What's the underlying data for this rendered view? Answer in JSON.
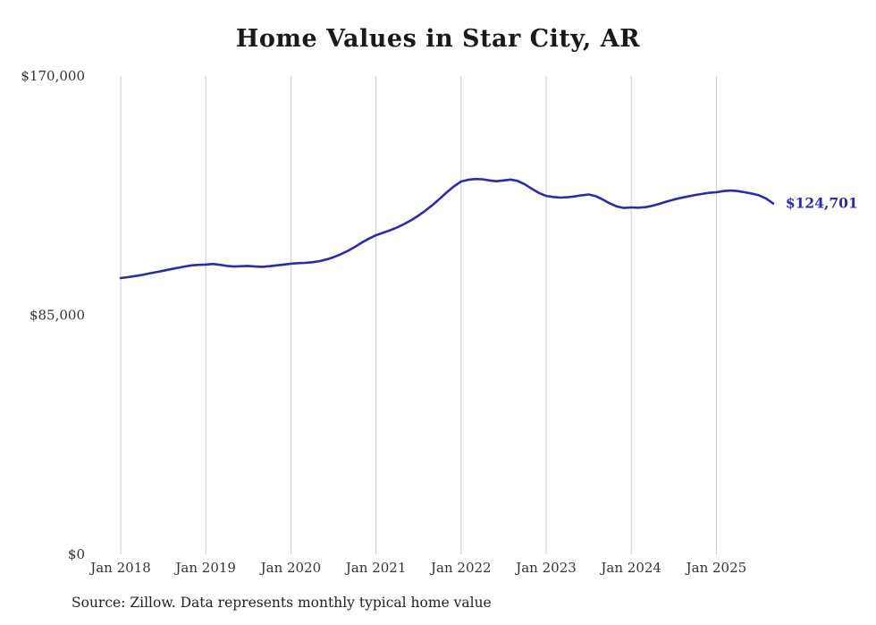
{
  "title": "Home Values in Star City, AR",
  "source": "Source: Zillow. Data represents monthly typical home value",
  "chart_data": {
    "type": "line",
    "series_name": "Monthly typical home value",
    "title": "Home Values in Star City, AR",
    "xlabel": "",
    "ylabel": "",
    "ylim": [
      0,
      170000
    ],
    "grid": "vertical-only",
    "legend": "none",
    "line_color": "#2e2ba6",
    "grid_color": "#cccccc",
    "end_label": "$124,701",
    "last_value": 124701,
    "y_ticks": [
      "$0",
      "$85,000",
      "$170,000"
    ],
    "y_tick_values": [
      0,
      85000,
      170000
    ],
    "x_ticks": [
      "Jan 2018",
      "Jan 2019",
      "Jan 2020",
      "Jan 2021",
      "Jan 2022",
      "Jan 2023",
      "Jan 2024",
      "Jan 2025"
    ],
    "x": [
      "2018-01",
      "2018-02",
      "2018-03",
      "2018-04",
      "2018-05",
      "2018-06",
      "2018-07",
      "2018-08",
      "2018-09",
      "2018-10",
      "2018-11",
      "2018-12",
      "2019-01",
      "2019-02",
      "2019-03",
      "2019-04",
      "2019-05",
      "2019-06",
      "2019-07",
      "2019-08",
      "2019-09",
      "2019-10",
      "2019-11",
      "2019-12",
      "2020-01",
      "2020-02",
      "2020-03",
      "2020-04",
      "2020-05",
      "2020-06",
      "2020-07",
      "2020-08",
      "2020-09",
      "2020-10",
      "2020-11",
      "2020-12",
      "2021-01",
      "2021-02",
      "2021-03",
      "2021-04",
      "2021-05",
      "2021-06",
      "2021-07",
      "2021-08",
      "2021-09",
      "2021-10",
      "2021-11",
      "2021-12",
      "2022-01",
      "2022-02",
      "2022-03",
      "2022-04",
      "2022-05",
      "2022-06",
      "2022-07",
      "2022-08",
      "2022-09",
      "2022-10",
      "2022-11",
      "2022-12",
      "2023-01",
      "2023-02",
      "2023-03",
      "2023-04",
      "2023-05",
      "2023-06",
      "2023-07",
      "2023-08",
      "2023-09",
      "2023-10",
      "2023-11",
      "2023-12",
      "2024-01",
      "2024-02",
      "2024-03",
      "2024-04",
      "2024-05",
      "2024-06",
      "2024-07",
      "2024-08",
      "2024-09",
      "2024-10",
      "2024-11",
      "2024-12",
      "2025-01",
      "2025-02",
      "2025-03",
      "2025-04",
      "2025-05",
      "2025-06",
      "2025-07",
      "2025-08",
      "2025-09"
    ],
    "values": [
      98200,
      98500,
      98900,
      99300,
      99800,
      100300,
      100800,
      101300,
      101800,
      102300,
      102700,
      102900,
      103000,
      103200,
      102900,
      102500,
      102300,
      102400,
      102500,
      102300,
      102200,
      102400,
      102700,
      103000,
      103300,
      103500,
      103600,
      103800,
      104200,
      104800,
      105600,
      106600,
      107800,
      109200,
      110800,
      112200,
      113400,
      114300,
      115200,
      116200,
      117400,
      118800,
      120400,
      122200,
      124200,
      126400,
      128700,
      130800,
      132500,
      133100,
      133400,
      133300,
      132900,
      132600,
      132900,
      133200,
      132700,
      131500,
      129900,
      128400,
      127400,
      127000,
      126800,
      126900,
      127200,
      127600,
      127900,
      127300,
      126100,
      124700,
      123600,
      123100,
      123300,
      123200,
      123400,
      123900,
      124600,
      125400,
      126100,
      126700,
      127200,
      127700,
      128100,
      128500,
      128700,
      129100,
      129300,
      129100,
      128700,
      128200,
      127600,
      126500,
      124701
    ]
  }
}
